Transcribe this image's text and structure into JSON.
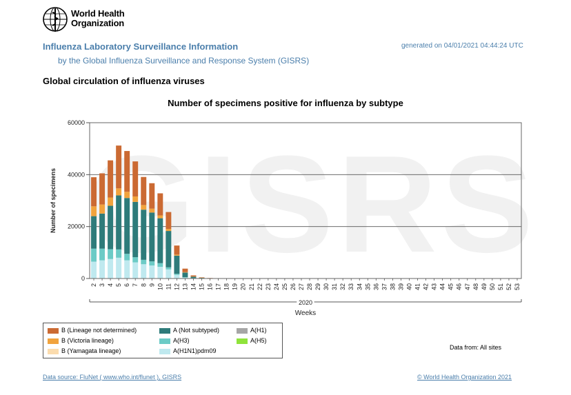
{
  "header": {
    "org_name_line1": "World Health",
    "org_name_line2": "Organization",
    "title": "Influenza Laboratory Surveillance Information",
    "subtitle": "by the Global Influenza Surveillance and Response System (GISRS)",
    "generated": "generated on 04/01/2021 04:44:24 UTC"
  },
  "section_title": "Global circulation of influenza viruses",
  "watermark": "GISRS",
  "chart_data": {
    "type": "bar",
    "stacked": true,
    "title": "Number of specimens positive for influenza by subtype",
    "xlabel": "Weeks",
    "ylabel": "Number of specimens",
    "x_group_label": "2020",
    "ylim": [
      0,
      60000
    ],
    "yticks": [
      0,
      20000,
      40000,
      60000
    ],
    "grid": "horizontal",
    "legend_position": "bottom-left",
    "categories": [
      "2",
      "3",
      "4",
      "5",
      "6",
      "7",
      "8",
      "9",
      "10",
      "11",
      "12",
      "13",
      "14",
      "15",
      "16",
      "17",
      "18",
      "19",
      "20",
      "21",
      "22",
      "23",
      "24",
      "25",
      "26",
      "27",
      "28",
      "29",
      "30",
      "31",
      "32",
      "33",
      "34",
      "35",
      "36",
      "37",
      "38",
      "39",
      "40",
      "41",
      "42",
      "43",
      "44",
      "45",
      "46",
      "47",
      "48",
      "49",
      "50",
      "51",
      "52",
      "53"
    ],
    "series": [
      {
        "name": "A(H1N1)pdm09",
        "color": "#bfe9ef",
        "values": [
          6500,
          7000,
          7500,
          8000,
          7000,
          6200,
          5500,
          5000,
          4500,
          3500,
          1400,
          350,
          120,
          50,
          20,
          10,
          10,
          10,
          10,
          10,
          10,
          10,
          10,
          10,
          10,
          10,
          10,
          10,
          10,
          10,
          10,
          10,
          10,
          10,
          10,
          10,
          10,
          10,
          10,
          10,
          10,
          10,
          10,
          10,
          10,
          10,
          10,
          10,
          10,
          10,
          10,
          10
        ]
      },
      {
        "name": "A(H3)",
        "color": "#6ccbc6",
        "values": [
          5000,
          4500,
          3800,
          3200,
          2500,
          2000,
          1700,
          1600,
          1400,
          800,
          400,
          150,
          50,
          30,
          10,
          10,
          10,
          10,
          10,
          10,
          10,
          10,
          10,
          10,
          10,
          10,
          10,
          10,
          10,
          10,
          10,
          10,
          10,
          10,
          10,
          10,
          10,
          10,
          10,
          10,
          10,
          10,
          10,
          10,
          10,
          10,
          10,
          10,
          10,
          10,
          10,
          10
        ]
      },
      {
        "name": "A(H1)",
        "color": "#a6a6a6",
        "values": [
          0,
          0,
          0,
          0,
          0,
          0,
          0,
          0,
          0,
          0,
          0,
          0,
          0,
          0,
          0,
          0,
          0,
          0,
          0,
          0,
          0,
          0,
          0,
          0,
          0,
          0,
          0,
          0,
          0,
          0,
          0,
          0,
          0,
          0,
          0,
          0,
          0,
          0,
          0,
          0,
          0,
          0,
          0,
          0,
          0,
          0,
          0,
          0,
          0,
          0,
          0,
          0
        ]
      },
      {
        "name": "A(H5)",
        "color": "#8fe33b",
        "values": [
          0,
          0,
          0,
          0,
          0,
          0,
          0,
          0,
          0,
          0,
          0,
          0,
          0,
          0,
          0,
          0,
          0,
          0,
          0,
          0,
          0,
          0,
          0,
          0,
          0,
          0,
          0,
          0,
          0,
          0,
          0,
          0,
          0,
          0,
          0,
          0,
          0,
          0,
          0,
          0,
          0,
          0,
          0,
          0,
          0,
          0,
          0,
          0,
          0,
          0,
          0,
          0
        ]
      },
      {
        "name": "A (Not subtyped)",
        "color": "#2e7b7a",
        "values": [
          12500,
          13500,
          16700,
          20800,
          21500,
          21300,
          19300,
          18800,
          17300,
          14000,
          7000,
          1800,
          550,
          200,
          80,
          40,
          30,
          20,
          10,
          10,
          10,
          10,
          10,
          10,
          10,
          10,
          10,
          10,
          10,
          10,
          10,
          10,
          10,
          10,
          10,
          10,
          10,
          10,
          10,
          10,
          10,
          10,
          10,
          10,
          10,
          10,
          10,
          10,
          10,
          10,
          10,
          10
        ]
      },
      {
        "name": "B (Yamagata lineage)",
        "color": "#fbdcae",
        "values": [
          0,
          0,
          0,
          0,
          0,
          0,
          0,
          0,
          0,
          0,
          0,
          0,
          0,
          0,
          0,
          0,
          0,
          0,
          0,
          0,
          0,
          0,
          0,
          0,
          0,
          0,
          0,
          0,
          0,
          0,
          0,
          0,
          0,
          0,
          0,
          0,
          0,
          0,
          0,
          0,
          0,
          0,
          0,
          0,
          0,
          0,
          0,
          0,
          0,
          0,
          0,
          0
        ]
      },
      {
        "name": "B (Victoria lineage)",
        "color": "#f1a33d",
        "values": [
          3800,
          3500,
          3200,
          2700,
          2400,
          2100,
          1800,
          1500,
          1100,
          800,
          400,
          150,
          60,
          20,
          10,
          10,
          10,
          10,
          10,
          10,
          10,
          10,
          10,
          10,
          10,
          10,
          10,
          10,
          10,
          10,
          10,
          10,
          10,
          10,
          10,
          10,
          10,
          10,
          10,
          10,
          10,
          10,
          10,
          10,
          10,
          10,
          10,
          10,
          10,
          10,
          10,
          10
        ]
      },
      {
        "name": "B (Lineage not determined)",
        "color": "#cb6a33",
        "values": [
          11200,
          12000,
          14300,
          16500,
          15700,
          13500,
          10800,
          9800,
          8500,
          6500,
          3500,
          1350,
          420,
          150,
          70,
          30,
          20,
          20,
          10,
          10,
          10,
          10,
          10,
          10,
          10,
          10,
          10,
          10,
          10,
          10,
          10,
          10,
          10,
          10,
          10,
          10,
          10,
          10,
          10,
          10,
          10,
          10,
          10,
          10,
          10,
          10,
          10,
          10,
          10,
          10,
          10,
          10
        ]
      }
    ],
    "legend_order": [
      "B (Lineage not determined)",
      "A (Not subtyped)",
      "A(H1)",
      "B (Victoria lineage)",
      "A(H3)",
      "A(H5)",
      "B (Yamagata lineage)",
      "A(H1N1)pdm09"
    ]
  },
  "data_from": "Data from: All sites",
  "footer": {
    "source": "Data source: FluNet ( www.who.int/flunet ), GISRS",
    "copyright": "© World Health Organization 2021"
  }
}
